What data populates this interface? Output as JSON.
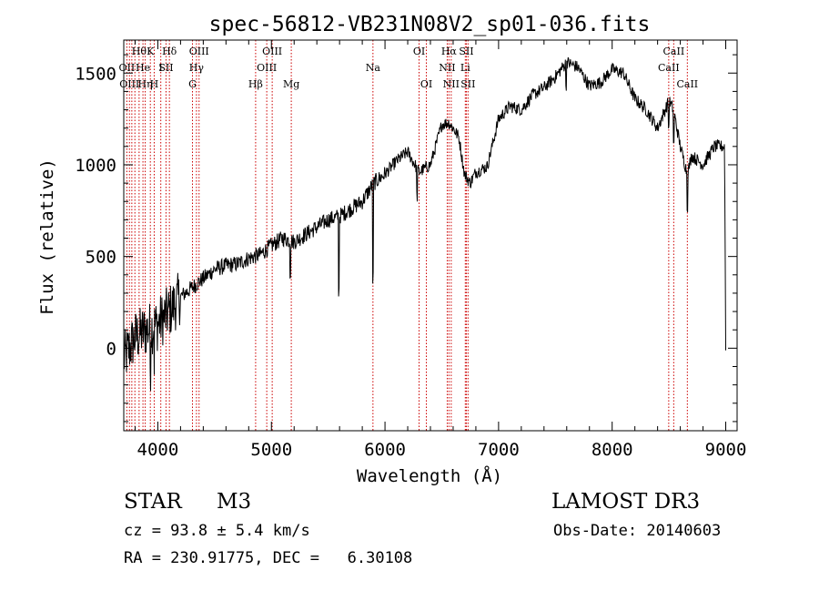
{
  "chart_data": {
    "type": "line",
    "title": "spec-56812-VB231N08V2_sp01-036.fits",
    "xlabel": "Wavelength (Å)",
    "ylabel": "Flux (relative)",
    "xlim": [
      3700,
      9100
    ],
    "ylim": [
      -450,
      1680
    ],
    "xticks": [
      4000,
      5000,
      6000,
      7000,
      8000,
      9000
    ],
    "xtick_labels": [
      "4000",
      "5000",
      "6000",
      "7000",
      "8000",
      "9000"
    ],
    "yticks": [
      0,
      500,
      1000,
      1500
    ],
    "ytick_labels": [
      "0",
      "500",
      "1000",
      "1500"
    ],
    "series": [
      {
        "name": "spectrum",
        "x": [
          3700,
          3800,
          3900,
          4000,
          4100,
          4200,
          4300,
          4400,
          4500,
          4600,
          4700,
          4800,
          4900,
          5000,
          5100,
          5200,
          5300,
          5400,
          5500,
          5600,
          5700,
          5800,
          5900,
          6000,
          6100,
          6200,
          6300,
          6400,
          6500,
          6560,
          6600,
          6650,
          6700,
          6750,
          6800,
          6900,
          7000,
          7100,
          7200,
          7300,
          7400,
          7500,
          7600,
          7700,
          7800,
          7900,
          8000,
          8100,
          8200,
          8300,
          8400,
          8500,
          8540,
          8600,
          8662,
          8700,
          8800,
          8900,
          8990,
          9000
        ],
        "y": [
          -60,
          60,
          100,
          130,
          200,
          280,
          330,
          380,
          430,
          450,
          460,
          490,
          510,
          560,
          600,
          580,
          620,
          660,
          700,
          720,
          760,
          800,
          900,
          950,
          1020,
          1070,
          960,
          1000,
          1220,
          1230,
          1200,
          1150,
          950,
          900,
          960,
          990,
          1250,
          1320,
          1300,
          1380,
          1420,
          1480,
          1560,
          1530,
          1430,
          1450,
          1520,
          1500,
          1360,
          1300,
          1200,
          1350,
          1300,
          1100,
          950,
          1050,
          1000,
          1100,
          1100,
          0
        ]
      }
    ],
    "lines": [
      {
        "x": 3727,
        "labels": [
          "OII"
        ],
        "rows": [
          1
        ]
      },
      {
        "x": 3750,
        "labels": [
          "OIII"
        ],
        "rows": [
          2
        ]
      },
      {
        "x": 3771,
        "labels": [],
        "rows": []
      },
      {
        "x": 3798,
        "labels": [],
        "rows": []
      },
      {
        "x": 3835,
        "labels": [
          "Hθ"
        ],
        "rows": [
          0
        ]
      },
      {
        "x": 3869,
        "labels": [
          "He"
        ],
        "rows": [
          1
        ]
      },
      {
        "x": 3889,
        "labels": [
          "Hη"
        ],
        "rows": [
          2
        ]
      },
      {
        "x": 3934,
        "labels": [
          "K"
        ],
        "rows": [
          0
        ]
      },
      {
        "x": 3968,
        "labels": [
          "H"
        ],
        "rows": [
          2
        ]
      },
      {
        "x": 4026,
        "labels": [
          "I"
        ],
        "rows": [
          1
        ]
      },
      {
        "x": 4072,
        "labels": [
          "SII"
        ],
        "rows": [
          1
        ]
      },
      {
        "x": 4102,
        "labels": [
          "Hδ"
        ],
        "rows": [
          0
        ]
      },
      {
        "x": 4305,
        "labels": [
          "G"
        ],
        "rows": [
          2
        ]
      },
      {
        "x": 4340,
        "labels": [
          "Hγ"
        ],
        "rows": [
          1
        ]
      },
      {
        "x": 4363,
        "labels": [
          "OIII"
        ],
        "rows": [
          0
        ]
      },
      {
        "x": 4861,
        "labels": [
          "Hβ"
        ],
        "rows": [
          2
        ]
      },
      {
        "x": 4959,
        "labels": [
          "OIII"
        ],
        "rows": [
          1
        ]
      },
      {
        "x": 5007,
        "labels": [
          "OIII"
        ],
        "rows": [
          0
        ]
      },
      {
        "x": 5175,
        "labels": [
          "Mg"
        ],
        "rows": [
          2
        ]
      },
      {
        "x": 5894,
        "labels": [
          "Na"
        ],
        "rows": [
          1
        ]
      },
      {
        "x": 6300,
        "labels": [
          "OI"
        ],
        "rows": [
          0
        ]
      },
      {
        "x": 6364,
        "labels": [
          "OI"
        ],
        "rows": [
          2
        ]
      },
      {
        "x": 6548,
        "labels": [
          "NII"
        ],
        "rows": [
          1
        ]
      },
      {
        "x": 6563,
        "labels": [
          "Hα"
        ],
        "rows": [
          0
        ]
      },
      {
        "x": 6583,
        "labels": [
          "NII"
        ],
        "rows": [
          2
        ]
      },
      {
        "x": 6707,
        "labels": [
          "Li"
        ],
        "rows": [
          1
        ]
      },
      {
        "x": 6716,
        "labels": [
          "SII"
        ],
        "rows": [
          0
        ]
      },
      {
        "x": 6731,
        "labels": [
          "SII"
        ],
        "rows": [
          2
        ]
      },
      {
        "x": 8498,
        "labels": [
          "CaII"
        ],
        "rows": [
          1
        ]
      },
      {
        "x": 8542,
        "labels": [
          "CaII"
        ],
        "rows": [
          0
        ]
      },
      {
        "x": 8662,
        "labels": [
          "CaII"
        ],
        "rows": [
          2
        ]
      }
    ]
  },
  "info": {
    "object_type": "STAR",
    "subclass": "M3",
    "survey": "LAMOST DR3",
    "cz_line": "cz = 93.8 ± 5.4 km/s",
    "obs_date": "Obs-Date: 20140603",
    "radec_line": "RA = 230.91775, DEC =   6.30108"
  },
  "colors": {
    "spectrum": "#000000",
    "line_marker": "#cc0000",
    "axes": "#000000"
  }
}
